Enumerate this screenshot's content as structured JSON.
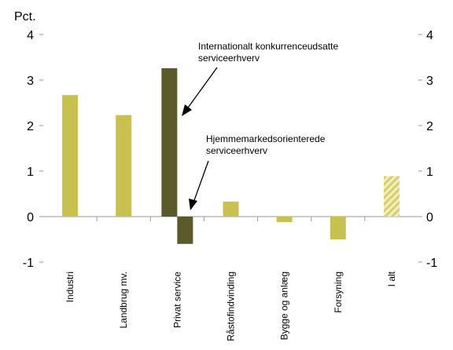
{
  "chart_data": {
    "type": "bar",
    "y_unit_label": "Pct.",
    "ylim": [
      -1,
      4
    ],
    "yticks": [
      -1,
      0,
      1,
      2,
      3,
      4
    ],
    "grid": false,
    "categories": [
      "Industri",
      "Landbrug mv.",
      "Privat service",
      "Råstofindvinding",
      "Bygge og anlæg",
      "Forsyning",
      "I alt"
    ],
    "bars": [
      {
        "category": "Industri",
        "value": 2.67,
        "style": "solid",
        "color": "#c8c150"
      },
      {
        "category": "Landbrug mv.",
        "value": 2.23,
        "style": "solid",
        "color": "#c8c150"
      },
      {
        "category": "Privat service",
        "value": 3.26,
        "style": "solid",
        "color": "#5a5a2a",
        "group": "Internationalt konkurrenceudsatte serviceerhverv"
      },
      {
        "category": "Privat service",
        "value": -0.6,
        "style": "solid",
        "color": "#5a5a2a",
        "group": "Hjemmemarkedsorienterede serviceerhverv"
      },
      {
        "category": "Råstofindvinding",
        "value": 0.33,
        "style": "solid",
        "color": "#c8c150"
      },
      {
        "category": "Bygge og anlæg",
        "value": -0.12,
        "style": "solid",
        "color": "#c8c150"
      },
      {
        "category": "Forsyning",
        "value": -0.5,
        "style": "solid",
        "color": "#c8c150"
      },
      {
        "category": "I alt",
        "value": 0.89,
        "style": "hatched",
        "color": "#d9cf6a"
      }
    ],
    "annotations": [
      {
        "text_lines": [
          "Internationalt konkurrenceudsatte",
          "serviceerhverv"
        ]
      },
      {
        "text_lines": [
          "Hjemmemarkedsorienterede",
          "serviceerhverv"
        ]
      }
    ]
  }
}
